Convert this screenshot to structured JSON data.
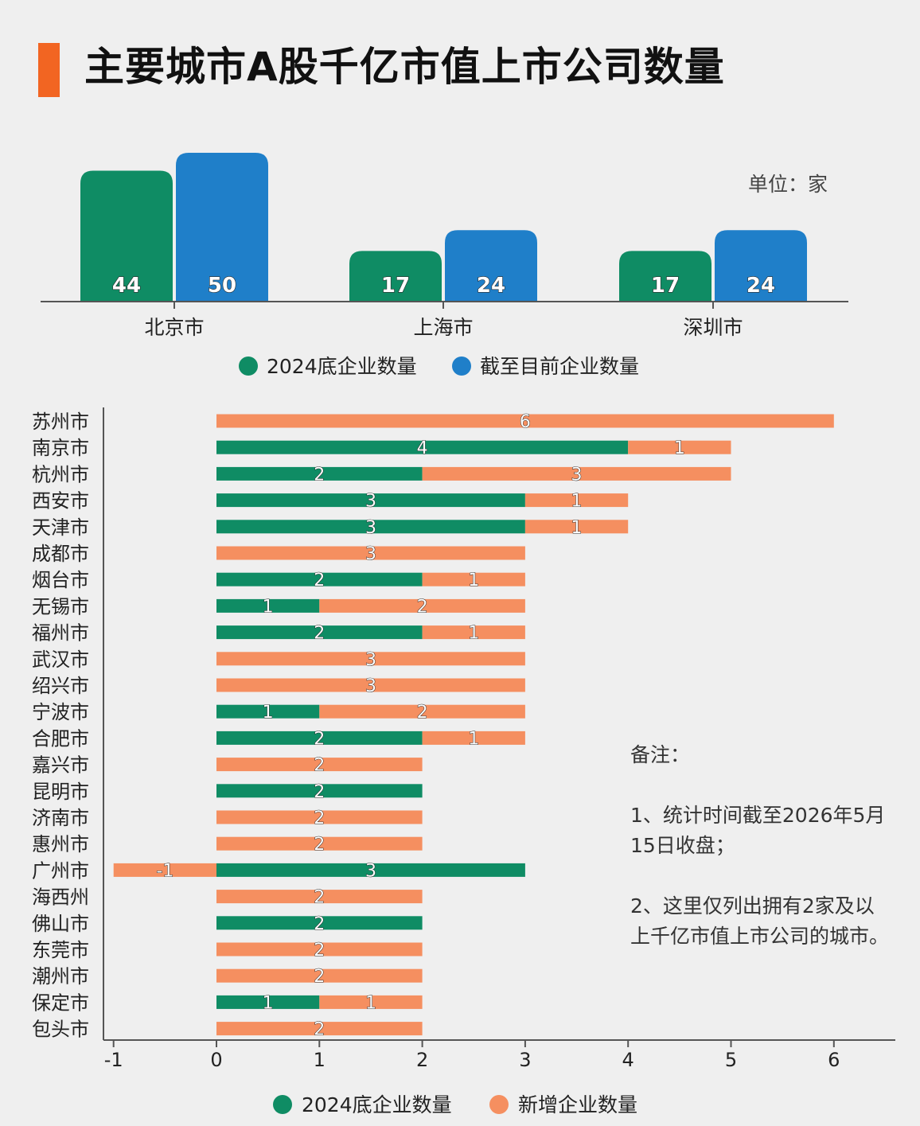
{
  "title": "主要城市A股千亿市值上市公司数量",
  "unit_label": "单位：家",
  "notes": {
    "heading": "备注：",
    "line1": "1、统计时间截至2026年5月15日收盘；",
    "line2": "2、这里仅列出拥有2家及以上千亿市值上市公司的城市。"
  },
  "colors": {
    "green": "#0f8c64",
    "blue": "#1f7fc9",
    "orange": "#f58f60",
    "accent": "#f26522"
  },
  "chart_data": [
    {
      "type": "bar",
      "categories": [
        "北京市",
        "上海市",
        "深圳市"
      ],
      "series": [
        {
          "name": "2024底企业数量",
          "values": [
            44,
            17,
            17
          ]
        },
        {
          "name": "截至目前企业数量",
          "values": [
            50,
            24,
            24
          ]
        }
      ],
      "legend": [
        "2024底企业数量",
        "截至目前企业数量"
      ],
      "legend_position": "bottom",
      "ylim": [
        0,
        50
      ]
    },
    {
      "type": "bar",
      "orientation": "horizontal",
      "stacked": true,
      "categories": [
        "苏州市",
        "南京市",
        "杭州市",
        "西安市",
        "天津市",
        "成都市",
        "烟台市",
        "无锡市",
        "福州市",
        "武汉市",
        "绍兴市",
        "宁波市",
        "合肥市",
        "嘉兴市",
        "昆明市",
        "济南市",
        "惠州市",
        "广州市",
        "海西州",
        "佛山市",
        "东莞市",
        "潮州市",
        "保定市",
        "包头市"
      ],
      "series": [
        {
          "name": "2024底企业数量",
          "values": [
            0,
            4,
            2,
            3,
            3,
            0,
            2,
            1,
            2,
            0,
            0,
            1,
            2,
            0,
            2,
            0,
            0,
            3,
            0,
            2,
            0,
            0,
            1,
            0
          ]
        },
        {
          "name": "新增企业数量",
          "values": [
            6,
            1,
            3,
            1,
            1,
            3,
            1,
            2,
            1,
            3,
            3,
            2,
            1,
            2,
            0,
            2,
            2,
            -1,
            2,
            0,
            2,
            2,
            1,
            2
          ]
        }
      ],
      "x_ticks": [
        "-1",
        "0",
        "1",
        "2",
        "3",
        "4",
        "5",
        "6"
      ],
      "xlim": [
        -1,
        6
      ],
      "legend": [
        "2024底企业数量",
        "新增企业数量"
      ],
      "legend_position": "bottom"
    }
  ]
}
